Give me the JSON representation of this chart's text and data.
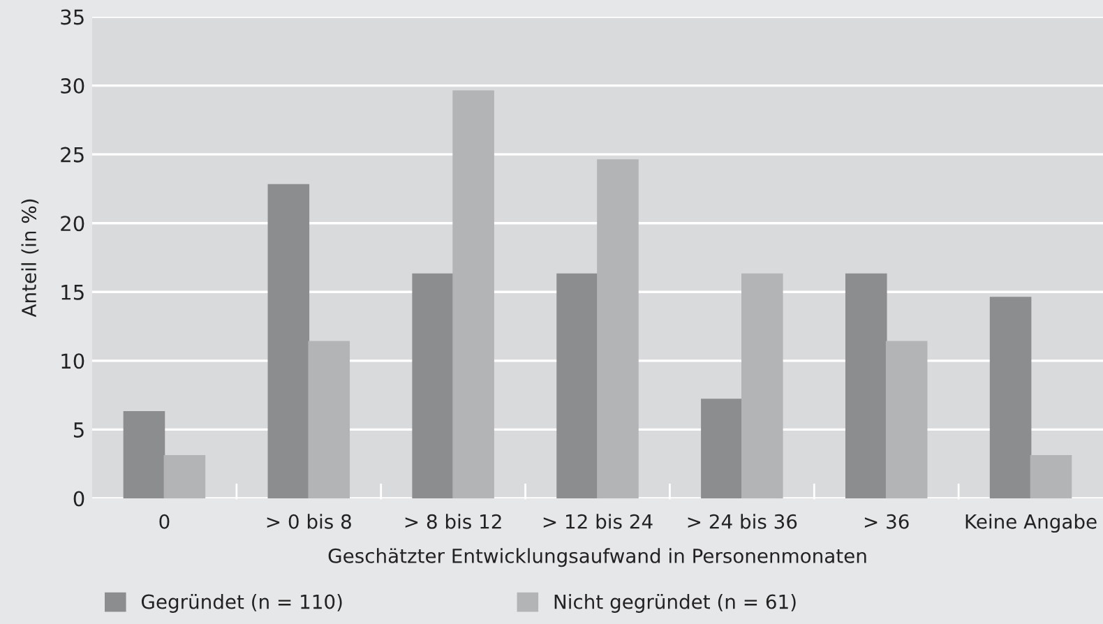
{
  "chart_data": {
    "type": "bar",
    "xlabel": "Geschätzter Entwicklungsaufwand in Personenmonaten",
    "ylabel": "Anteil (in %)",
    "categories": [
      "0",
      "> 0 bis 8",
      "> 8 bis 12",
      "> 12 bis 24",
      "> 24 bis 36",
      "> 36",
      "Keine Angabe"
    ],
    "series": [
      {
        "name": "Gegründet (n = 110)",
        "color": "#8c8d8f",
        "values": [
          6.3,
          22.8,
          16.3,
          16.3,
          7.2,
          16.3,
          14.6
        ]
      },
      {
        "name": "Nicht gegründet (n = 61)",
        "color": "#b3b4b6",
        "values": [
          3.1,
          11.4,
          29.6,
          24.6,
          16.3,
          11.4,
          3.1
        ]
      }
    ],
    "ylim": [
      0,
      35
    ],
    "yticks": [
      0,
      5,
      10,
      15,
      20,
      25,
      30,
      35
    ],
    "grid": "y",
    "legend": "bottom"
  }
}
